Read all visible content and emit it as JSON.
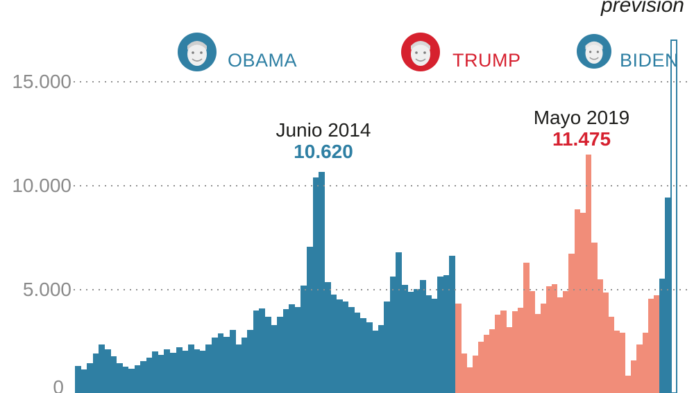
{
  "header": {
    "prevision_label": "previsión",
    "presidents": [
      {
        "name": "OBAMA",
        "color": "#2e7fa3",
        "avatar_color": "#3180a4"
      },
      {
        "name": "TRUMP",
        "color": "#d6202f",
        "avatar_color": "#d6212e"
      },
      {
        "name": "BIDEN",
        "color": "#2e7fa3",
        "avatar_color": "#3180a4"
      }
    ]
  },
  "y_axis": {
    "ticks": [
      "15.000",
      "10.000",
      "5.000",
      "0"
    ]
  },
  "annotations": [
    {
      "label": "Junio 2014",
      "value": "10.620",
      "value_color": "#2e7fa3"
    },
    {
      "label": "Mayo 2019",
      "value": "11.475",
      "value_color": "#d6202f"
    }
  ],
  "chart_data": {
    "type": "bar",
    "title": "",
    "xlabel": "",
    "ylabel": "",
    "ylim": [
      0,
      17000
    ],
    "gridlines": [
      15000,
      10000,
      5000
    ],
    "grid": "dotted-horizontal, drawn over bars",
    "legend_position": "top (president avatars mark era of each colored segment)",
    "colors": {
      "obama_bars": "#2f7fa3",
      "trump_bars": "#f18d79",
      "biden_bars": "#2f7fa3",
      "forecast_outline": "#2f7fa3",
      "gridline": "#8f8f8f",
      "axis_text": "#8a8a8a"
    },
    "series": [
      {
        "name": "Obama",
        "color": "#2f7fa3",
        "values": [
          1300,
          1150,
          1450,
          1900,
          2330,
          2100,
          1770,
          1430,
          1270,
          1170,
          1330,
          1530,
          1700,
          2000,
          1830,
          2100,
          1930,
          2200,
          2030,
          2330,
          2100,
          2030,
          2330,
          2670,
          2870,
          2700,
          3030,
          2330,
          2670,
          3030,
          3970,
          4070,
          3670,
          3270,
          3670,
          4030,
          4270,
          4130,
          5170,
          7030,
          10380,
          10620,
          5330,
          4730,
          4500,
          4400,
          4130,
          3870,
          3600,
          3400,
          3000,
          3270,
          4400,
          5600,
          6770,
          5200,
          4870,
          5000,
          5430,
          4700,
          4530,
          5600,
          5670,
          6600
        ]
      },
      {
        "name": "Trump",
        "color": "#f18d79",
        "values": [
          4300,
          1900,
          1230,
          1800,
          2470,
          2800,
          3070,
          3770,
          3970,
          3170,
          3930,
          4100,
          6270,
          4900,
          3800,
          4300,
          5130,
          5230,
          4600,
          4900,
          6700,
          8840,
          8670,
          11475,
          7230,
          5470,
          4830,
          3670,
          3000,
          2900,
          830,
          1570,
          2330,
          2900,
          4530,
          4700
        ]
      },
      {
        "name": "Biden",
        "color": "#2f7fa3",
        "values": [
          5510,
          9400
        ]
      },
      {
        "name": "Biden prevision",
        "style": "outline",
        "color": "#2f7fa3",
        "values": [
          17000
        ]
      }
    ],
    "highlights": [
      {
        "series": "Obama",
        "label": "Junio 2014",
        "value": 10620
      },
      {
        "series": "Trump",
        "label": "Mayo 2019",
        "value": 11475
      }
    ]
  }
}
